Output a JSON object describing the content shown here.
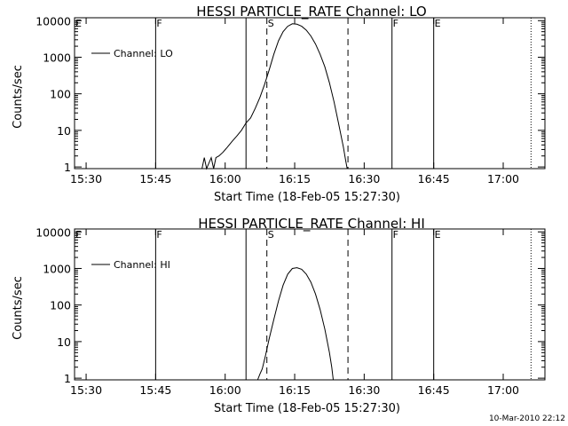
{
  "footer": {
    "timestamp": "10-Mar-2010 22:12"
  },
  "chart_data": [
    {
      "type": "line",
      "title": "HESSI PARTICLE_RATE Channel: LO",
      "xlabel": "Start Time (18-Feb-05 15:27:30)",
      "ylabel": "Counts/sec",
      "y_scale": "log",
      "ylim": [
        0.9,
        12000
      ],
      "xlim": [
        "15:27:30",
        "17:09:00"
      ],
      "x_ticks": [
        "15:30",
        "15:45",
        "16:00",
        "16:15",
        "16:30",
        "16:45",
        "17:00"
      ],
      "y_ticks": [
        "1",
        "10",
        "100",
        "1000",
        "10000"
      ],
      "legend": {
        "position": "top-left",
        "entries": [
          "Channel: LO"
        ]
      },
      "markers": [
        {
          "label": "E",
          "time": "15:27:30",
          "style": "solid"
        },
        {
          "label": "F",
          "time": "15:45:00",
          "style": "solid"
        },
        {
          "label": "",
          "time": "16:04:30",
          "style": "solid"
        },
        {
          "label": "S",
          "time": "16:09:00",
          "style": "dashed"
        },
        {
          "label": "",
          "time": "16:26:30",
          "style": "dashed"
        },
        {
          "label": "F",
          "time": "16:36:00",
          "style": "solid"
        },
        {
          "label": "E",
          "time": "16:45:00",
          "style": "solid"
        },
        {
          "label": "",
          "time": "17:06:00",
          "style": "dotted"
        }
      ],
      "series": [
        {
          "name": "Channel: LO",
          "points": [
            [
              "15:55:00",
              0.9
            ],
            [
              "15:55:30",
              1.8
            ],
            [
              "15:56:00",
              0.9
            ],
            [
              "15:57:00",
              1.8
            ],
            [
              "15:57:30",
              0.9
            ],
            [
              "15:58:00",
              1.8
            ],
            [
              "15:58:40",
              2
            ],
            [
              "15:59:30",
              2.5
            ],
            [
              "16:00:30",
              3.5
            ],
            [
              "16:01:30",
              5
            ],
            [
              "16:02:30",
              7
            ],
            [
              "16:03:30",
              10
            ],
            [
              "16:04:30",
              16
            ],
            [
              "16:05:30",
              22
            ],
            [
              "16:06:30",
              40
            ],
            [
              "16:07:30",
              80
            ],
            [
              "16:08:30",
              180
            ],
            [
              "16:09:30",
              450
            ],
            [
              "16:10:30",
              1200
            ],
            [
              "16:11:30",
              2800
            ],
            [
              "16:12:30",
              5000
            ],
            [
              "16:13:30",
              7000
            ],
            [
              "16:14:30",
              8200
            ],
            [
              "16:15:30",
              8000
            ],
            [
              "16:16:30",
              7000
            ],
            [
              "16:17:30",
              5500
            ],
            [
              "16:18:30",
              3800
            ],
            [
              "16:19:30",
              2300
            ],
            [
              "16:20:30",
              1200
            ],
            [
              "16:21:30",
              550
            ],
            [
              "16:22:30",
              200
            ],
            [
              "16:23:30",
              60
            ],
            [
              "16:24:30",
              15
            ],
            [
              "16:25:30",
              3.5
            ],
            [
              "16:26:00",
              1.5
            ],
            [
              "16:26:20",
              0.9
            ]
          ]
        }
      ]
    },
    {
      "type": "line",
      "title": "HESSI PARTICLE_RATE Channel: HI",
      "xlabel": "Start Time (18-Feb-05 15:27:30)",
      "ylabel": "Counts/sec",
      "y_scale": "log",
      "ylim": [
        0.9,
        12000
      ],
      "xlim": [
        "15:27:30",
        "17:09:00"
      ],
      "x_ticks": [
        "15:30",
        "15:45",
        "16:00",
        "16:15",
        "16:30",
        "16:45",
        "17:00"
      ],
      "y_ticks": [
        "1",
        "10",
        "100",
        "1000",
        "10000"
      ],
      "legend": {
        "position": "top-left",
        "entries": [
          "Channel: HI"
        ]
      },
      "markers": [
        {
          "label": "E",
          "time": "15:27:30",
          "style": "solid"
        },
        {
          "label": "F",
          "time": "15:45:00",
          "style": "solid"
        },
        {
          "label": "",
          "time": "16:04:30",
          "style": "solid"
        },
        {
          "label": "S",
          "time": "16:09:00",
          "style": "dashed"
        },
        {
          "label": "",
          "time": "16:26:30",
          "style": "dashed"
        },
        {
          "label": "F",
          "time": "16:36:00",
          "style": "solid"
        },
        {
          "label": "E",
          "time": "16:45:00",
          "style": "solid"
        },
        {
          "label": "",
          "time": "17:06:00",
          "style": "dotted"
        }
      ],
      "series": [
        {
          "name": "Channel: HI",
          "points": [
            [
              "16:07:00",
              0.9
            ],
            [
              "16:07:30",
              1.3
            ],
            [
              "16:08:00",
              1.8
            ],
            [
              "16:08:40",
              4
            ],
            [
              "16:09:30",
              12
            ],
            [
              "16:10:30",
              40
            ],
            [
              "16:11:30",
              130
            ],
            [
              "16:12:30",
              350
            ],
            [
              "16:13:30",
              700
            ],
            [
              "16:14:30",
              1000
            ],
            [
              "16:15:30",
              1050
            ],
            [
              "16:16:30",
              950
            ],
            [
              "16:17:30",
              700
            ],
            [
              "16:18:30",
              420
            ],
            [
              "16:19:30",
              200
            ],
            [
              "16:20:30",
              75
            ],
            [
              "16:21:30",
              22
            ],
            [
              "16:22:30",
              5
            ],
            [
              "16:23:00",
              2
            ],
            [
              "16:23:20",
              0.9
            ]
          ]
        }
      ]
    }
  ]
}
